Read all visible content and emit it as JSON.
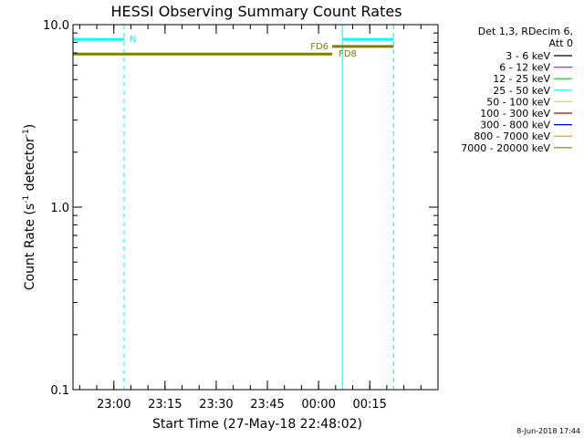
{
  "chart_data": {
    "type": "line",
    "title": "HESSI Observing Summary Count Rates",
    "xlabel": "Start Time (27-May-18 22:48:02)",
    "ylabel_main": "Count Rate (s",
    "ylabel_sup1": "-1",
    "ylabel_mid": " detector",
    "ylabel_sup2": "-1",
    "ylabel_end": ")",
    "x_range": [
      "22:48:02",
      "00:35"
    ],
    "y_scale": "log",
    "ylim": [
      0.1,
      10.0
    ],
    "x_ticks": [
      "23:00",
      "23:15",
      "23:30",
      "23:45",
      "00:00",
      "00:15"
    ],
    "y_ticks": [
      {
        "value": 10.0,
        "label": "10.0"
      },
      {
        "value": 1.0,
        "label": "1.0"
      },
      {
        "value": 0.1,
        "label": "0.1"
      }
    ],
    "legend": {
      "header_line1": "Det 1,3, RDecim 6,",
      "header_line2": "Att 0",
      "placement": "right",
      "entries": [
        {
          "label": "3 - 6 keV",
          "color": "#000000"
        },
        {
          "label": "6 - 12 keV",
          "color": "#ff00ff"
        },
        {
          "label": "12 - 25 keV",
          "color": "#00dd00"
        },
        {
          "label": "25 - 50 keV",
          "color": "#00ffff"
        },
        {
          "label": "50 - 100 keV",
          "color": "#ffd700"
        },
        {
          "label": "100 - 300 keV",
          "color": "#c00000"
        },
        {
          "label": "300 - 800 keV",
          "color": "#0000ff"
        },
        {
          "label": "800 - 7000 keV",
          "color": "#ff8c00"
        },
        {
          "label": "7000 - 20000 keV",
          "color": "#808000"
        }
      ]
    },
    "vertical_markers": [
      {
        "time": "22:48:02",
        "style": "solid",
        "color": "#00ffff"
      },
      {
        "time": "23:03",
        "style": "dashed",
        "color": "#00ffff"
      },
      {
        "time": "00:07",
        "style": "solid",
        "color": "#00ffff"
      },
      {
        "time": "00:22",
        "style": "dashed",
        "color": "#00ffff"
      }
    ],
    "bars": [
      {
        "flag": "N",
        "start": "22:48:02",
        "end": "23:03",
        "value": 8.3,
        "color": "#00ffff"
      },
      {
        "flag": "",
        "start": "00:07",
        "end": "00:22",
        "value": 8.3,
        "color": "#00ffff"
      },
      {
        "flag": "FD8",
        "start": "22:48:02",
        "end": "00:04",
        "value": 6.9,
        "color": "#808000"
      },
      {
        "flag": "FD6",
        "start": "00:04",
        "end": "00:22",
        "value": 7.6,
        "color": "#808000"
      }
    ],
    "footer_date": "8-Jun-2018 17:44"
  }
}
